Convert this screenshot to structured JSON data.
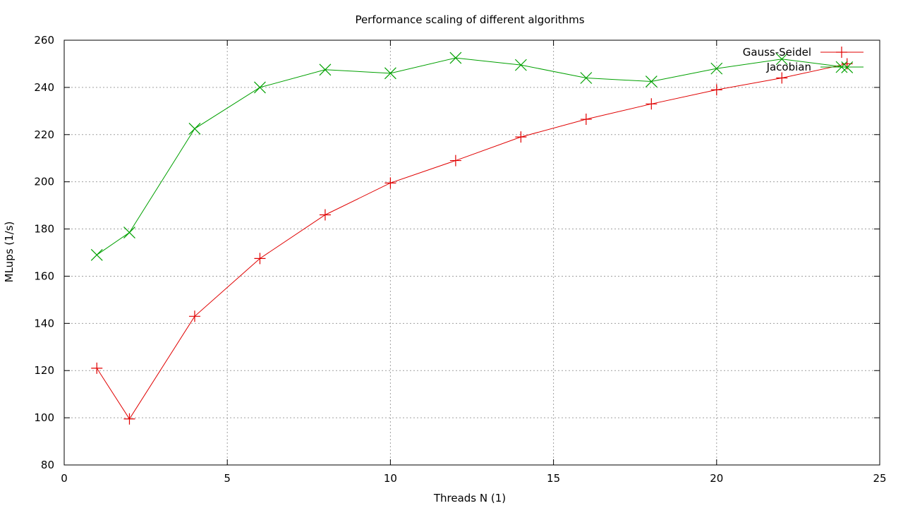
{
  "chart_data": {
    "type": "line",
    "title": "Performance scaling of different algorithms",
    "xlabel": "Threads N (1)",
    "ylabel": "MLups (1/s)",
    "xlim": [
      0,
      25
    ],
    "ylim": [
      80,
      260
    ],
    "xticks": [
      0,
      5,
      10,
      15,
      20,
      25
    ],
    "yticks": [
      80,
      100,
      120,
      140,
      160,
      180,
      200,
      220,
      240,
      260
    ],
    "grid": true,
    "legend_position": "top-right",
    "series": [
      {
        "name": "Gauss-Seidel",
        "color": "#e00000",
        "marker": "plus",
        "x": [
          1,
          2,
          4,
          6,
          8,
          10,
          12,
          14,
          16,
          18,
          20,
          22,
          24
        ],
        "y": [
          121,
          99.5,
          143,
          167.5,
          186,
          199.5,
          209,
          219,
          226.5,
          233,
          239,
          244,
          250
        ]
      },
      {
        "name": "Jacobian",
        "color": "#00a000",
        "marker": "cross",
        "x": [
          1,
          2,
          4,
          6,
          8,
          10,
          12,
          14,
          16,
          18,
          20,
          22,
          24
        ],
        "y": [
          169,
          178.5,
          222.5,
          240,
          247.5,
          246,
          252.5,
          249.5,
          244,
          242.5,
          248,
          252,
          248.5
        ]
      }
    ]
  }
}
